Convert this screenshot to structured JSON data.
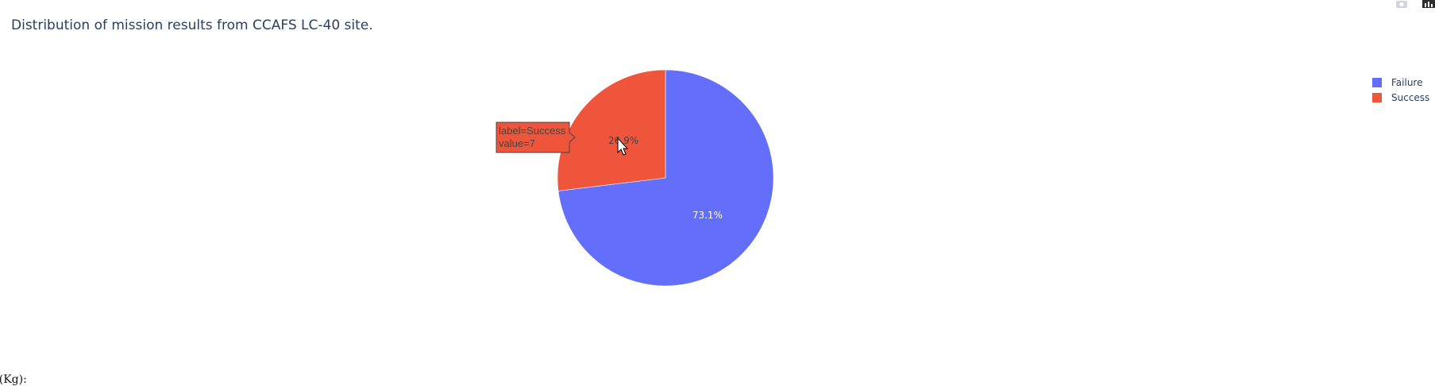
{
  "chart_data": {
    "type": "pie",
    "title": "Distribution of mission results from CCAFS LC-40 site.",
    "labels": [
      "Failure",
      "Success"
    ],
    "values": [
      19,
      7
    ],
    "percent_labels": [
      "73.1%",
      "26.9%"
    ],
    "colors": [
      "#636efa",
      "#ef553b"
    ],
    "legend_position": "top-right",
    "hover": {
      "slice": "Success",
      "lines": [
        "label=Success",
        "value=7"
      ]
    }
  },
  "modebar": {
    "icons": [
      "camera-icon",
      "plotly-logo-icon"
    ]
  },
  "bottom_label": "e (Kg):"
}
